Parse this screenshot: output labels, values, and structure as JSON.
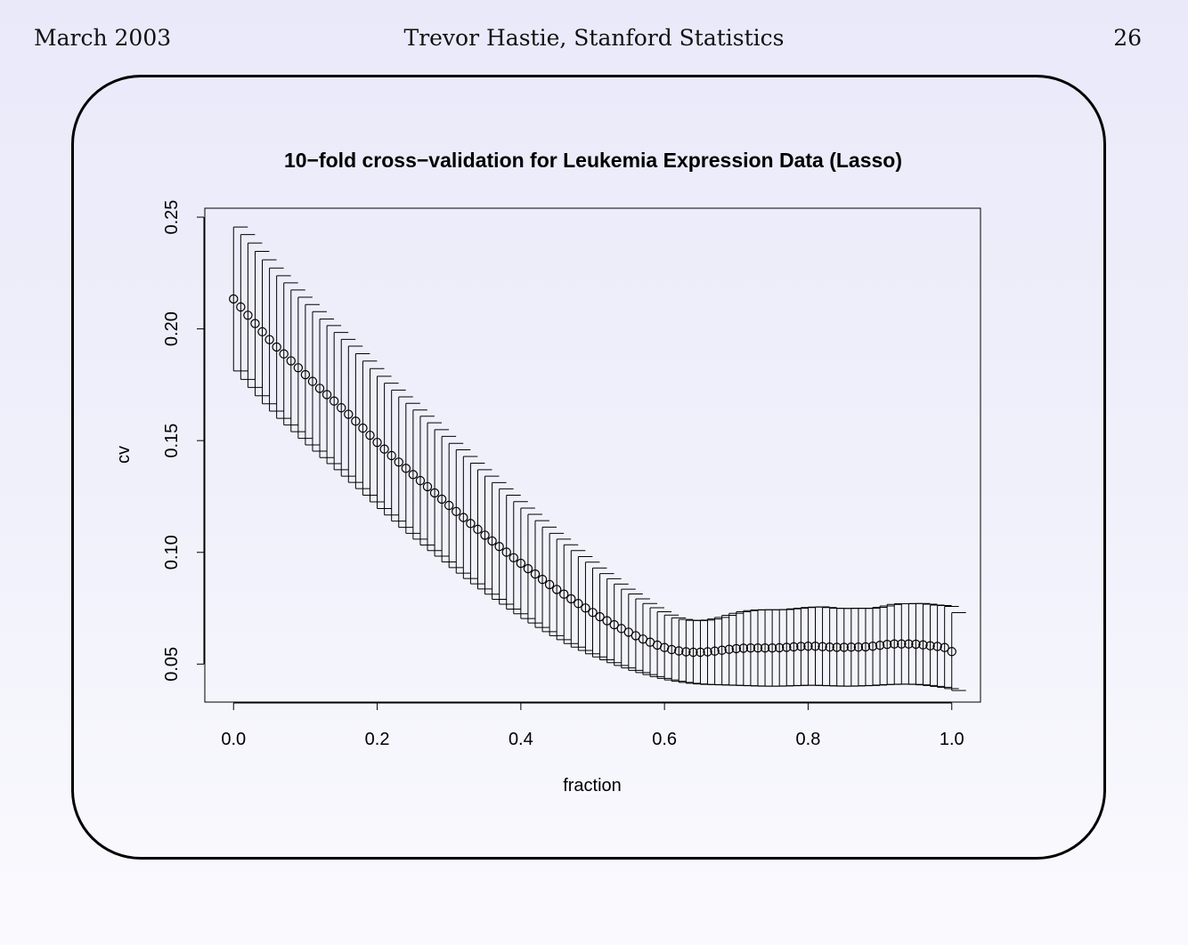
{
  "header": {
    "date": "March 2003",
    "author": "Trevor Hastie, Stanford Statistics",
    "page_number": "26"
  },
  "chart_data": {
    "type": "scatter",
    "title": "10−fold cross−validation for Leukemia Expression Data (Lasso)",
    "xlabel": "fraction",
    "ylabel": "cv",
    "xlim": [
      -0.04,
      1.04
    ],
    "ylim": [
      0.033,
      0.254
    ],
    "xticks": [
      "0.0",
      "0.2",
      "0.4",
      "0.6",
      "0.8",
      "1.0"
    ],
    "yticks": [
      "0.05",
      "0.10",
      "0.15",
      "0.20",
      "0.25"
    ],
    "grid": false,
    "error_bars": true,
    "series": [
      {
        "marker": "open-circle",
        "x": [
          0.0,
          0.01,
          0.02,
          0.03,
          0.04,
          0.05,
          0.06,
          0.07,
          0.08,
          0.09,
          0.1,
          0.11,
          0.12,
          0.13,
          0.14,
          0.15,
          0.16,
          0.17,
          0.18,
          0.19,
          0.2,
          0.21,
          0.22,
          0.23,
          0.24,
          0.25,
          0.26,
          0.27,
          0.28,
          0.29,
          0.3,
          0.31,
          0.32,
          0.33,
          0.34,
          0.35,
          0.36,
          0.37,
          0.38,
          0.39,
          0.4,
          0.41,
          0.42,
          0.43,
          0.44,
          0.45,
          0.46,
          0.47,
          0.48,
          0.49,
          0.5,
          0.51,
          0.52,
          0.53,
          0.54,
          0.55,
          0.56,
          0.57,
          0.58,
          0.59,
          0.6,
          0.61,
          0.62,
          0.63,
          0.64,
          0.65,
          0.66,
          0.67,
          0.68,
          0.69,
          0.7,
          0.71,
          0.72,
          0.73,
          0.74,
          0.75,
          0.76,
          0.77,
          0.78,
          0.79,
          0.8,
          0.81,
          0.82,
          0.83,
          0.84,
          0.85,
          0.86,
          0.87,
          0.88,
          0.89,
          0.9,
          0.91,
          0.92,
          0.93,
          0.94,
          0.95,
          0.96,
          0.97,
          0.98,
          0.99,
          1.0
        ],
        "y": [
          0.2134,
          0.2098,
          0.2061,
          0.2024,
          0.1987,
          0.1952,
          0.1919,
          0.1888,
          0.1857,
          0.1826,
          0.1795,
          0.1765,
          0.1734,
          0.1706,
          0.1677,
          0.1647,
          0.1618,
          0.1587,
          0.1556,
          0.1524,
          0.1492,
          0.1462,
          0.1433,
          0.1404,
          0.1376,
          0.1348,
          0.1321,
          0.1294,
          0.1266,
          0.1238,
          0.121,
          0.1183,
          0.1156,
          0.1129,
          0.1103,
          0.1077,
          0.1051,
          0.1026,
          0.1001,
          0.0976,
          0.0951,
          0.0927,
          0.0903,
          0.0879,
          0.0856,
          0.0834,
          0.0813,
          0.0792,
          0.0771,
          0.0751,
          0.0731,
          0.0712,
          0.0694,
          0.0676,
          0.0659,
          0.0643,
          0.0627,
          0.0612,
          0.0598,
          0.0585,
          0.0574,
          0.0565,
          0.0559,
          0.0555,
          0.0553,
          0.0553,
          0.0555,
          0.0558,
          0.0562,
          0.0566,
          0.0569,
          0.0571,
          0.0572,
          0.0572,
          0.0572,
          0.0572,
          0.0573,
          0.0575,
          0.0577,
          0.0579,
          0.058,
          0.058,
          0.0578,
          0.0576,
          0.0575,
          0.0575,
          0.0576,
          0.0576,
          0.0577,
          0.058,
          0.0584,
          0.0588,
          0.059,
          0.059,
          0.059,
          0.0589,
          0.0586,
          0.0582,
          0.0579,
          0.0574,
          0.0556
        ],
        "lower": [
          0.1812,
          0.1774,
          0.1738,
          0.1701,
          0.1665,
          0.1632,
          0.16,
          0.157,
          0.154,
          0.151,
          0.1481,
          0.1453,
          0.1424,
          0.1397,
          0.137,
          0.1341,
          0.1313,
          0.1285,
          0.1256,
          0.1226,
          0.1196,
          0.1167,
          0.114,
          0.1112,
          0.1085,
          0.1059,
          0.1033,
          0.1008,
          0.0983,
          0.0957,
          0.0932,
          0.0907,
          0.0883,
          0.0859,
          0.0836,
          0.0813,
          0.079,
          0.0768,
          0.0746,
          0.0725,
          0.0704,
          0.0684,
          0.0664,
          0.0645,
          0.0627,
          0.0609,
          0.0592,
          0.0576,
          0.0561,
          0.0546,
          0.0532,
          0.0519,
          0.0506,
          0.0494,
          0.0483,
          0.0472,
          0.0462,
          0.0453,
          0.0444,
          0.0436,
          0.0429,
          0.0423,
          0.0418,
          0.0414,
          0.0411,
          0.0409,
          0.0408,
          0.0407,
          0.0406,
          0.0405,
          0.0404,
          0.0403,
          0.0402,
          0.0401,
          0.0401,
          0.0401,
          0.0402,
          0.0403,
          0.0404,
          0.0405,
          0.0405,
          0.0404,
          0.0403,
          0.0402,
          0.0401,
          0.0401,
          0.0402,
          0.0403,
          0.0404,
          0.0406,
          0.0408,
          0.0409,
          0.041,
          0.041,
          0.0409,
          0.0407,
          0.0404,
          0.04,
          0.0396,
          0.039,
          0.0382
        ],
        "upper": [
          0.2456,
          0.2422,
          0.2384,
          0.2347,
          0.2309,
          0.2272,
          0.2238,
          0.2206,
          0.2174,
          0.2142,
          0.2109,
          0.2077,
          0.2044,
          0.2015,
          0.1984,
          0.1953,
          0.1923,
          0.1889,
          0.1856,
          0.1822,
          0.1788,
          0.1757,
          0.1726,
          0.1696,
          0.1667,
          0.1637,
          0.1609,
          0.158,
          0.1549,
          0.1519,
          0.1488,
          0.1459,
          0.1429,
          0.1399,
          0.137,
          0.1341,
          0.1312,
          0.1284,
          0.1256,
          0.1227,
          0.1198,
          0.117,
          0.1142,
          0.1113,
          0.1085,
          0.1059,
          0.1034,
          0.1008,
          0.0981,
          0.0956,
          0.093,
          0.0905,
          0.0882,
          0.0858,
          0.0835,
          0.0814,
          0.0792,
          0.0771,
          0.0752,
          0.0734,
          0.0719,
          0.0707,
          0.07,
          0.0696,
          0.0695,
          0.0697,
          0.0702,
          0.0709,
          0.0718,
          0.0727,
          0.0734,
          0.0739,
          0.0742,
          0.0743,
          0.0743,
          0.0743,
          0.0744,
          0.0747,
          0.075,
          0.0753,
          0.0755,
          0.0756,
          0.0753,
          0.075,
          0.0749,
          0.0749,
          0.075,
          0.0749,
          0.075,
          0.0754,
          0.076,
          0.0767,
          0.077,
          0.077,
          0.0771,
          0.0771,
          0.0768,
          0.0764,
          0.0762,
          0.0758,
          0.073
        ]
      }
    ]
  }
}
